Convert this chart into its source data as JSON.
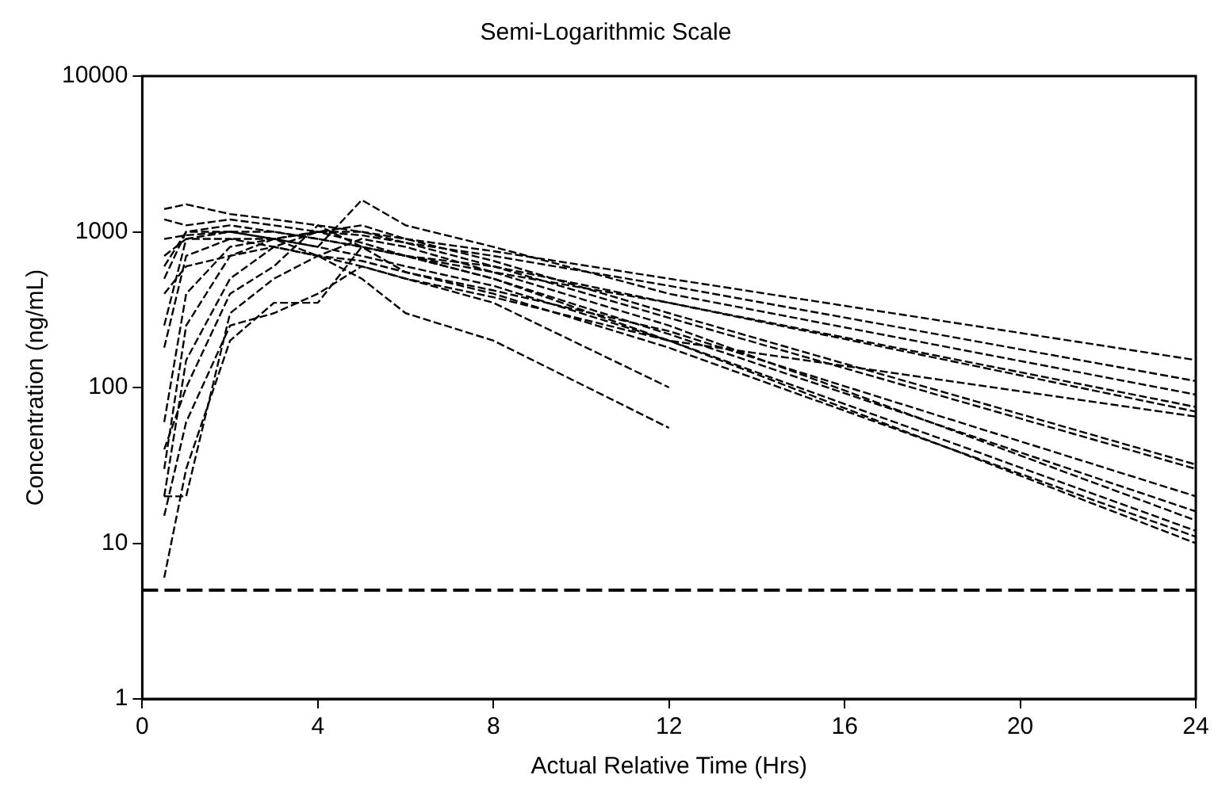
{
  "chart_data": {
    "type": "line",
    "title": "Semi-Logarithmic Scale",
    "xlabel": "Actual Relative Time (Hrs)",
    "ylabel": "Concentration (ng/mL)",
    "x": [
      0.5,
      1,
      2,
      3,
      4,
      5,
      6,
      8,
      12,
      24
    ],
    "series": [
      {
        "color": "#000000",
        "values": [
          1400,
          1500,
          1300,
          1200,
          1100,
          1000,
          900,
          750,
          500,
          150
        ]
      },
      {
        "color": "#000000",
        "values": [
          1200,
          1100,
          1200,
          1100,
          1000,
          950,
          850,
          700,
          450,
          110
        ]
      },
      {
        "color": "#000000",
        "values": [
          600,
          1000,
          1100,
          1000,
          900,
          800,
          700,
          550,
          350,
          75
        ]
      },
      {
        "color": "#000000",
        "values": [
          900,
          950,
          1000,
          1000,
          900,
          800,
          700,
          600,
          350,
          70
        ]
      },
      {
        "color": "#000000",
        "values": [
          250,
          900,
          1000,
          900,
          800,
          1600,
          1100,
          800,
          400,
          90
        ]
      },
      {
        "color": "#000000",
        "values": [
          30,
          250,
          700,
          900,
          1000,
          1100,
          900,
          650,
          300,
          32
        ]
      },
      {
        "color": "#000000",
        "values": [
          20,
          150,
          500,
          800,
          1000,
          1000,
          850,
          600,
          280,
          30
        ]
      },
      {
        "color": "#000000",
        "values": [
          60,
          400,
          800,
          900,
          1000,
          850,
          700,
          500,
          220,
          16
        ]
      },
      {
        "color": "#000000",
        "values": [
          20,
          20,
          300,
          500,
          700,
          900,
          800,
          550,
          250,
          14
        ]
      },
      {
        "color": "#000000",
        "values": [
          6,
          30,
          200,
          350,
          350,
          800,
          700,
          500,
          200,
          12
        ]
      },
      {
        "color": "#000000",
        "values": [
          180,
          700,
          900,
          900,
          800,
          700,
          600,
          450,
          200,
          10
        ]
      },
      {
        "color": "#000000",
        "values": [
          40,
          100,
          400,
          600,
          1100,
          800,
          550,
          400,
          180,
          11
        ]
      },
      {
        "color": "#000000",
        "values": [
          15,
          60,
          250,
          300,
          400,
          600,
          500,
          380,
          200,
          65
        ]
      },
      {
        "color": "#000000",
        "values": [
          500,
          1000,
          1000,
          900,
          700,
          500,
          300,
          200,
          55,
          null
        ]
      },
      {
        "color": "#000000",
        "values": [
          700,
          900,
          900,
          800,
          700,
          600,
          500,
          350,
          100,
          null
        ]
      },
      {
        "color": "#000000",
        "values": [
          400,
          600,
          700,
          800,
          700,
          650,
          550,
          420,
          230,
          20
        ]
      }
    ],
    "xlim": [
      0,
      24
    ],
    "xticks": [
      0,
      4,
      8,
      12,
      16,
      20,
      24
    ],
    "ylim": [
      1,
      10000
    ],
    "yticks": [
      1,
      10,
      100,
      1000,
      10000
    ],
    "log": "y",
    "grid": false,
    "legend": false,
    "marker": "none",
    "line_style": "dashed",
    "ref_lines": [
      {
        "axis": "y",
        "value": 5,
        "line_style": "dashed",
        "color": "#000000"
      }
    ]
  }
}
